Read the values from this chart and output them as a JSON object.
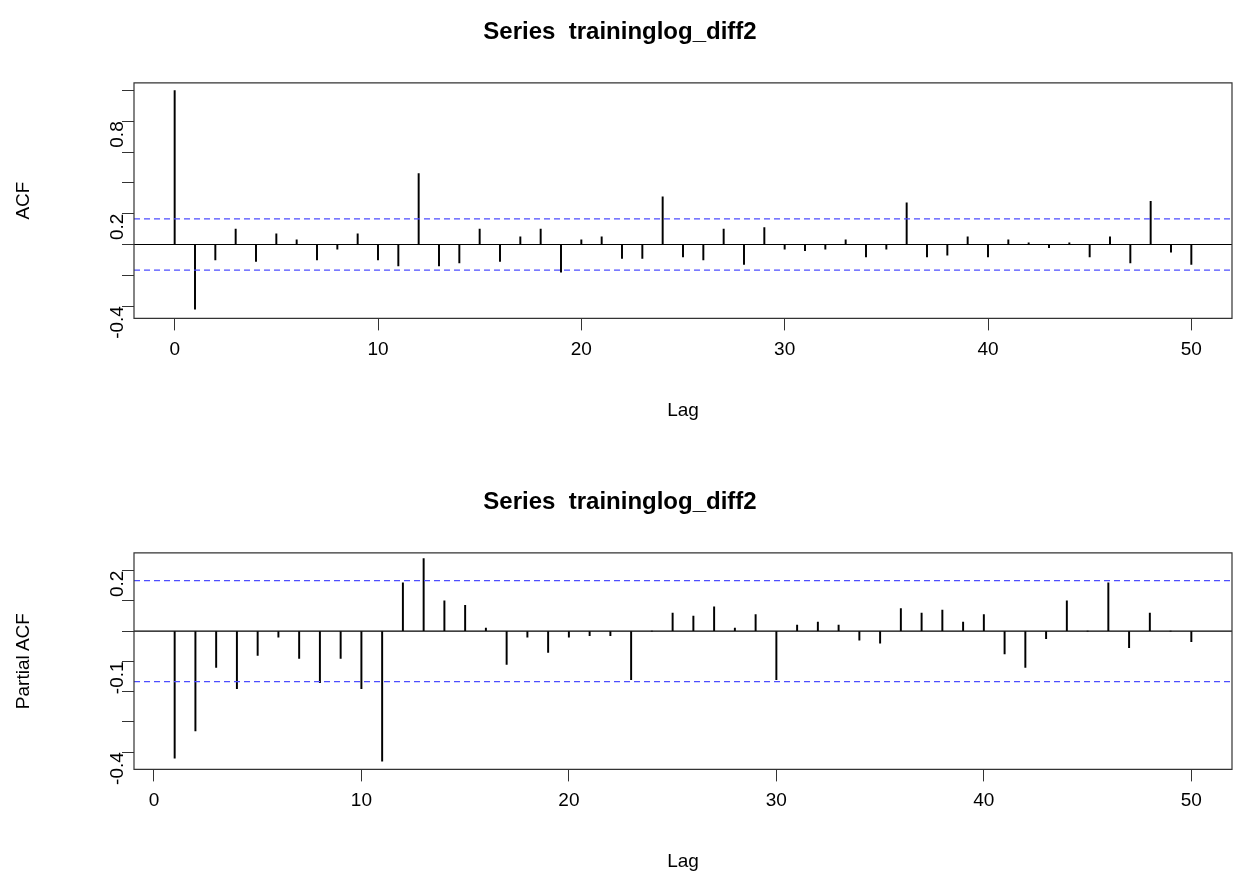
{
  "chart_data": [
    {
      "type": "bar",
      "title": "Series  traininglog_diff2",
      "xlabel": "Lag",
      "ylabel": "ACF",
      "color": "#000000",
      "grid": false,
      "legend": false,
      "x": [
        0,
        1,
        2,
        3,
        4,
        5,
        6,
        7,
        8,
        9,
        10,
        11,
        12,
        13,
        14,
        15,
        16,
        17,
        18,
        19,
        20,
        21,
        22,
        23,
        24,
        25,
        26,
        27,
        28,
        29,
        30,
        31,
        32,
        33,
        34,
        35,
        36,
        37,
        38,
        39,
        40,
        41,
        42,
        43,
        44,
        45,
        46,
        47,
        48,
        49,
        50
      ],
      "values": [
        1.0,
        -0.42,
        -0.1,
        0.1,
        -0.11,
        0.07,
        0.03,
        -0.1,
        -0.03,
        0.07,
        -0.1,
        -0.14,
        0.46,
        -0.14,
        -0.12,
        0.1,
        -0.11,
        0.05,
        0.1,
        -0.18,
        0.03,
        0.05,
        -0.09,
        -0.09,
        0.31,
        -0.08,
        -0.1,
        0.1,
        -0.13,
        0.11,
        -0.03,
        -0.04,
        -0.03,
        0.03,
        -0.08,
        -0.03,
        0.27,
        -0.08,
        -0.07,
        0.05,
        -0.08,
        0.03,
        0.01,
        -0.02,
        0.01,
        -0.08,
        0.05,
        -0.12,
        0.28,
        -0.05,
        -0.13
      ],
      "xlim": [
        -2,
        52
      ],
      "xticks": [
        0,
        10,
        20,
        30,
        40,
        50
      ],
      "ylim": [
        -0.48,
        1.05
      ],
      "yticks": [
        {
          "value": -0.4,
          "label": "-0.4"
        },
        {
          "value": -0.2,
          "label": null
        },
        {
          "value": 0,
          "label": null
        },
        {
          "value": 0.2,
          "label": "0.2"
        },
        {
          "value": 0.4,
          "label": null
        },
        {
          "value": 0.6,
          "label": null
        },
        {
          "value": 0.8,
          "label": "0.8"
        },
        {
          "value": 1.0,
          "label": null
        }
      ],
      "ref_lines": [
        {
          "axis": "y",
          "value": 0,
          "color": "#000000",
          "line_style": "solid"
        },
        {
          "axis": "y",
          "value": 0.166,
          "color": "#4d4dff",
          "line_style": "dashed"
        },
        {
          "axis": "y",
          "value": -0.166,
          "color": "#4d4dff",
          "line_style": "dashed"
        }
      ]
    },
    {
      "type": "bar",
      "title": "Series  traininglog_diff2",
      "xlabel": "Lag",
      "ylabel": "Partial ACF",
      "color": "#000000",
      "grid": false,
      "legend": false,
      "x": [
        1,
        2,
        3,
        4,
        5,
        6,
        7,
        8,
        9,
        10,
        11,
        12,
        13,
        14,
        15,
        16,
        17,
        18,
        19,
        20,
        21,
        22,
        23,
        24,
        25,
        26,
        27,
        28,
        29,
        30,
        31,
        32,
        33,
        34,
        35,
        36,
        37,
        38,
        39,
        40,
        41,
        42,
        43,
        44,
        45,
        46,
        47,
        48,
        49,
        50
      ],
      "values": [
        -0.42,
        -0.33,
        -0.12,
        -0.19,
        -0.08,
        -0.02,
        -0.09,
        -0.17,
        -0.09,
        -0.19,
        -0.43,
        0.16,
        0.24,
        0.1,
        0.085,
        0.01,
        -0.11,
        -0.02,
        -0.07,
        -0.02,
        -0.015,
        -0.015,
        -0.16,
        0,
        0.06,
        0.05,
        0.08,
        0.01,
        0.055,
        -0.16,
        0.02,
        0.03,
        0.02,
        -0.03,
        -0.04,
        0.075,
        0.06,
        0.07,
        0.03,
        0.055,
        -0.075,
        -0.12,
        -0.025,
        0.1,
        0,
        0.16,
        -0.055,
        0.06,
        0,
        -0.035
      ],
      "xlim": [
        -0.96,
        51.96
      ],
      "xticks": [
        0,
        10,
        20,
        30,
        40,
        50
      ],
      "ylim": [
        -0.457,
        0.259
      ],
      "yticks": [
        {
          "value": -0.4,
          "label": "-0.4"
        },
        {
          "value": -0.3,
          "label": null
        },
        {
          "value": -0.2,
          "label": null
        },
        {
          "value": -0.1,
          "label": "-0.1"
        },
        {
          "value": 0,
          "label": null
        },
        {
          "value": 0.1,
          "label": null
        },
        {
          "value": 0.2,
          "label": "0.2"
        }
      ],
      "ref_lines": [
        {
          "axis": "y",
          "value": 0,
          "color": "#000000",
          "line_style": "solid"
        },
        {
          "axis": "y",
          "value": 0.167,
          "color": "#4d4dff",
          "line_style": "dashed"
        },
        {
          "axis": "y",
          "value": -0.167,
          "color": "#4d4dff",
          "line_style": "dashed"
        }
      ]
    }
  ]
}
